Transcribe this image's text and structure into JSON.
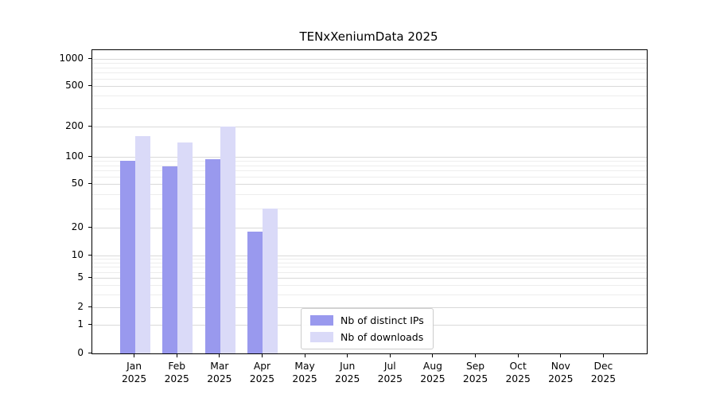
{
  "title": "TENxXeniumData 2025",
  "chart_data": {
    "type": "bar",
    "title": "TENxXeniumData 2025",
    "categories": [
      "Jan",
      "Feb",
      "Mar",
      "Apr",
      "May",
      "Jun",
      "Jul",
      "Aug",
      "Sep",
      "Oct",
      "Nov",
      "Dec"
    ],
    "year_label": "2025",
    "series": [
      {
        "name": "Nb of distinct IPs",
        "color": "#9999ee",
        "values": [
          90,
          78,
          95,
          18,
          0,
          0,
          0,
          0,
          0,
          0,
          0,
          0
        ]
      },
      {
        "name": "Nb of downloads",
        "color": "#dadaf8",
        "values": [
          160,
          140,
          200,
          30,
          0,
          0,
          0,
          0,
          0,
          0,
          0,
          0
        ]
      }
    ],
    "y_ticks": [
      0,
      1,
      2,
      5,
      10,
      20,
      50,
      100,
      200,
      500,
      1000
    ],
    "y_scale": "symlog",
    "ylim": [
      0,
      1000
    ],
    "grid": "horizontal",
    "legend_position": "bottom-center-inside"
  }
}
